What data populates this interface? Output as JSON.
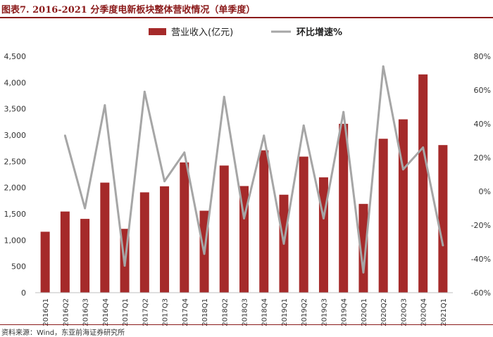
{
  "header": {
    "title": "图表7. 2016-2021 分季度电新板块整体营收情况（单季度）"
  },
  "footer": {
    "source": "资料来源：Wind，东亚前海证券研究所"
  },
  "chart_data": {
    "type": "bar",
    "categories": [
      "2016Q1",
      "2016Q2",
      "2016Q3",
      "2016Q4",
      "2017Q1",
      "2017Q2",
      "2017Q3",
      "2017Q4",
      "2018Q1",
      "2018Q2",
      "2018Q3",
      "2018Q4",
      "2019Q1",
      "2019Q2",
      "2019Q3",
      "2019Q4",
      "2020Q1",
      "2020Q2",
      "2020Q3",
      "2020Q4",
      "2021Q1"
    ],
    "series": [
      {
        "name": "营业收入(亿元)",
        "type": "bar",
        "axis": "left",
        "color": "#a52a2a",
        "values": [
          1160,
          1545,
          1405,
          2095,
          1215,
          1910,
          2025,
          2480,
          1560,
          2420,
          2030,
          2710,
          1865,
          2590,
          2195,
          3215,
          1690,
          2930,
          3300,
          4155,
          2810
        ]
      },
      {
        "name": "环比增速%",
        "type": "line",
        "axis": "right",
        "color": "#a6a6a6",
        "values": [
          null,
          33,
          -10,
          51,
          -44,
          59,
          6,
          23,
          -37,
          56,
          -16,
          33,
          -31,
          39,
          -16,
          47,
          -48,
          74,
          13,
          26,
          -32
        ]
      }
    ],
    "y_left": {
      "ylim": [
        0,
        4500
      ],
      "ticks": [
        0,
        500,
        1000,
        1500,
        2000,
        2500,
        3000,
        3500,
        4000,
        4500
      ],
      "tick_labels": [
        "0",
        "500",
        "1,000",
        "1,500",
        "2,000",
        "2,500",
        "3,000",
        "3,500",
        "4,000",
        "4,500"
      ]
    },
    "y_right": {
      "ylim": [
        -60,
        80
      ],
      "ticks": [
        -60,
        -40,
        -20,
        0,
        20,
        40,
        60,
        80
      ],
      "tick_labels": [
        "-60%",
        "-40%",
        "-20%",
        "0%",
        "20%",
        "40%",
        "60%",
        "80%"
      ]
    },
    "legend_position": "top",
    "grid": false
  }
}
